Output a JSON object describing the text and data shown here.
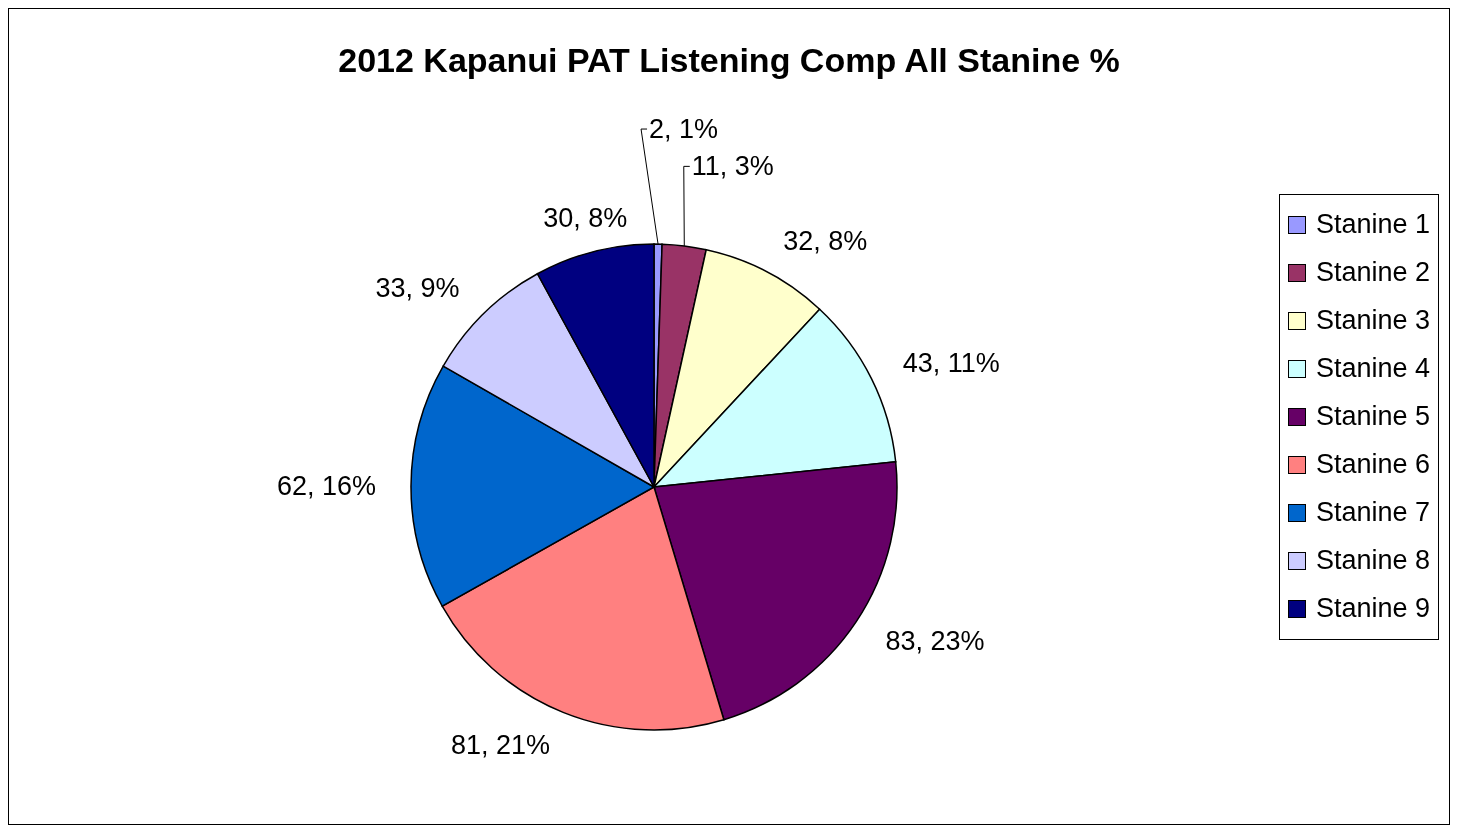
{
  "chart_data": {
    "type": "pie",
    "title": "2012 Kapanui PAT Listening Comp All Stanine %",
    "categories": [
      "Stanine 1",
      "Stanine 2",
      "Stanine 3",
      "Stanine 4",
      "Stanine 5",
      "Stanine 6",
      "Stanine 7",
      "Stanine 8",
      "Stanine 9"
    ],
    "values": [
      2,
      11,
      32,
      43,
      83,
      81,
      62,
      33,
      30
    ],
    "value_labels": [
      "2, 1%",
      "11, 3%",
      "32, 8%",
      "43, 11%",
      "83, 23%",
      "81, 21%",
      "62, 16%",
      "33, 9%",
      "30, 8%"
    ],
    "colors": [
      "#9999ff",
      "#993366",
      "#ffffcc",
      "#ccffff",
      "#660066",
      "#ff8080",
      "#0066cc",
      "#ccccff",
      "#000080"
    ],
    "legend": "right"
  }
}
